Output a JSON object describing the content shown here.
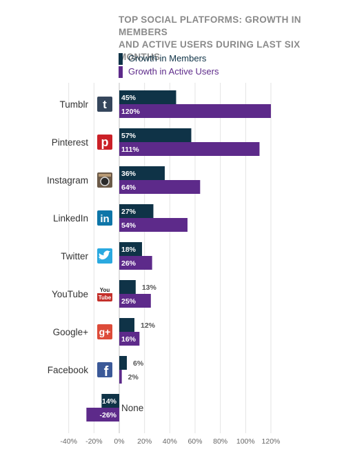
{
  "chart_data": {
    "type": "bar",
    "orientation": "horizontal",
    "title_lines": [
      "TOP SOCIAL PLATFORMS: GROWTH IN MEMBERS",
      "AND ACTIVE USERS DURING LAST SIX MONTHS"
    ],
    "categories": [
      "Tumblr",
      "Pinterest",
      "Instagram",
      "LinkedIn",
      "Twitter",
      "YouTube",
      "Google+",
      "Facebook",
      "None"
    ],
    "series": [
      {
        "name": "Growth in Members",
        "color": "#0f3347",
        "values": [
          45,
          57,
          36,
          27,
          18,
          13,
          12,
          6,
          -14
        ]
      },
      {
        "name": "Growth in Active Users",
        "color": "#5d2a8a",
        "values": [
          120,
          111,
          64,
          54,
          26,
          25,
          16,
          2,
          -26
        ]
      }
    ],
    "value_labels": [
      [
        "45%",
        "57%",
        "36%",
        "27%",
        "18%",
        "13%",
        "12%",
        "6%",
        "-14%"
      ],
      [
        "120%",
        "111%",
        "64%",
        "54%",
        "26%",
        "25%",
        "16%",
        "2%",
        "-26%"
      ]
    ],
    "x_ticks": [
      -40,
      -20,
      0,
      20,
      40,
      60,
      80,
      100,
      120
    ],
    "x_tick_labels": [
      "-40%",
      "-20%",
      "0%",
      "20%",
      "40%",
      "60%",
      "80%",
      "100%",
      "120%"
    ],
    "xlim": [
      -40,
      120
    ],
    "icons": [
      "tumblr-icon",
      "pinterest-icon",
      "instagram-icon",
      "linkedin-icon",
      "twitter-icon",
      "youtube-icon",
      "google-plus-icon",
      "facebook-icon",
      null
    ],
    "icon_colors": [
      "#35465c",
      "#cb2027",
      "#5a4a3a",
      "#0e76a8",
      "#2aa9e0",
      "#c4302b",
      "#dd4b39",
      "#3b5998",
      null
    ],
    "grid": "vertical",
    "legend_position": "top"
  }
}
